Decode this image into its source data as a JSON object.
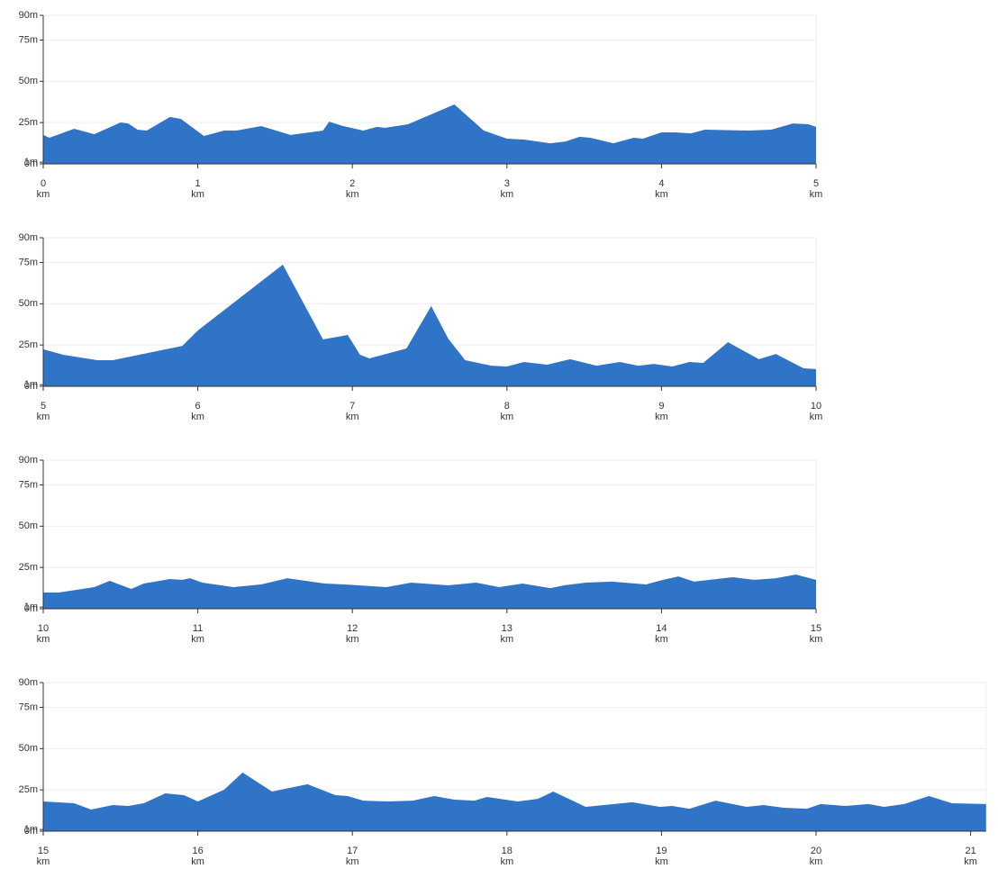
{
  "chart_data": [
    {
      "type": "area",
      "color": "#2f74c7",
      "grid": true,
      "x_unit": "km",
      "xlim": [
        0,
        5
      ],
      "xticks": [
        0,
        1,
        2,
        3,
        4,
        5
      ],
      "ylim": [
        0,
        90
      ],
      "yticks": [
        {
          "value": 0,
          "label": "0m"
        },
        {
          "value": 1,
          "label": "1m"
        },
        {
          "value": 25,
          "label": "25m"
        },
        {
          "value": 50,
          "label": "50m"
        },
        {
          "value": 75,
          "label": "75m"
        },
        {
          "value": 90,
          "label": "90m"
        }
      ],
      "x": [
        0,
        0.04,
        0.2,
        0.33,
        0.5,
        0.55,
        0.61,
        0.67,
        0.82,
        0.89,
        1.04,
        1.17,
        1.25,
        1.41,
        1.6,
        1.81,
        1.85,
        1.94,
        2.07,
        2.16,
        2.21,
        2.36,
        2.66,
        2.85,
        3.0,
        3.11,
        3.28,
        3.38,
        3.47,
        3.54,
        3.69,
        3.82,
        3.88,
        4.0,
        4.09,
        4.19,
        4.28,
        4.56,
        4.71,
        4.85,
        4.95,
        5.0
      ],
      "values": [
        17.5,
        15.8,
        21.3,
        18,
        25.1,
        24.5,
        20.7,
        20.2,
        28.4,
        27.3,
        16.9,
        20.2,
        20.2,
        22.9,
        17.5,
        20.2,
        25.6,
        22.9,
        20.2,
        22.4,
        21.8,
        24,
        36,
        20.2,
        15.3,
        14.7,
        12.5,
        13.6,
        16.4,
        15.8,
        12.5,
        15.8,
        15.3,
        19.1,
        19.1,
        18.5,
        20.7,
        20.2,
        20.7,
        24.5,
        24,
        22.4
      ]
    },
    {
      "type": "area",
      "color": "#2f74c7",
      "grid": true,
      "x_unit": "km",
      "xlim": [
        5,
        10
      ],
      "xticks": [
        5,
        6,
        7,
        8,
        9,
        10
      ],
      "ylim": [
        0,
        90
      ],
      "yticks": [
        {
          "value": 0,
          "label": "0m"
        },
        {
          "value": 1,
          "label": "1m"
        },
        {
          "value": 25,
          "label": "25m"
        },
        {
          "value": 50,
          "label": "50m"
        },
        {
          "value": 75,
          "label": "75m"
        },
        {
          "value": 90,
          "label": "90m"
        }
      ],
      "x": [
        5,
        5.13,
        5.35,
        5.45,
        5.9,
        6.0,
        6.55,
        6.81,
        6.97,
        7.05,
        7.11,
        7.35,
        7.51,
        7.62,
        7.73,
        7.9,
        8.0,
        8.11,
        8.26,
        8.41,
        8.58,
        8.73,
        8.85,
        8.95,
        9.07,
        9.18,
        9.27,
        9.43,
        9.63,
        9.74,
        9.92,
        10.0
      ],
      "values": [
        22.4,
        19.1,
        15.8,
        15.8,
        24.5,
        33.8,
        73.7,
        28.4,
        31.1,
        19.1,
        16.9,
        22.9,
        48.6,
        28.9,
        15.8,
        12.5,
        12,
        14.7,
        13.1,
        16.4,
        12.5,
        14.7,
        12.5,
        13.6,
        12,
        14.7,
        14.2,
        26.7,
        16.4,
        19.6,
        10.9,
        10.4
      ]
    },
    {
      "type": "area",
      "color": "#2f74c7",
      "grid": true,
      "x_unit": "km",
      "xlim": [
        10,
        15
      ],
      "xticks": [
        10,
        11,
        12,
        13,
        14,
        15
      ],
      "ylim": [
        0,
        90
      ],
      "yticks": [
        {
          "value": 0,
          "label": "0m"
        },
        {
          "value": 1,
          "label": "1m"
        },
        {
          "value": 25,
          "label": "25m"
        },
        {
          "value": 50,
          "label": "50m"
        },
        {
          "value": 75,
          "label": "75m"
        },
        {
          "value": 90,
          "label": "90m"
        }
      ],
      "x": [
        10,
        10.1,
        10.33,
        10.43,
        10.57,
        10.65,
        10.82,
        10.9,
        10.95,
        11.03,
        11.23,
        11.41,
        11.58,
        11.82,
        11.95,
        12.22,
        12.38,
        12.62,
        12.8,
        12.95,
        13.1,
        13.28,
        13.37,
        13.51,
        13.68,
        13.9,
        14.01,
        14.11,
        14.21,
        14.46,
        14.6,
        14.74,
        14.87,
        15.0
      ],
      "values": [
        9.8,
        9.8,
        13.1,
        16.9,
        12,
        15.3,
        18,
        17.5,
        18.5,
        15.8,
        13.1,
        14.7,
        18.5,
        15.3,
        14.7,
        13.1,
        15.8,
        14.2,
        15.8,
        13.1,
        15.3,
        12.5,
        14.2,
        15.8,
        16.4,
        14.7,
        17.5,
        19.6,
        16.4,
        19.1,
        17.5,
        18.5,
        20.7,
        17.5
      ]
    },
    {
      "type": "area",
      "color": "#2f74c7",
      "grid": true,
      "x_unit": "km",
      "xlim": [
        15,
        21.1
      ],
      "xticks": [
        15,
        16,
        17,
        18,
        19,
        20,
        21
      ],
      "ylim": [
        0,
        90
      ],
      "yticks": [
        {
          "value": 0,
          "label": "0m"
        },
        {
          "value": 1,
          "label": "1m"
        },
        {
          "value": 25,
          "label": "25m"
        },
        {
          "value": 50,
          "label": "50m"
        },
        {
          "value": 75,
          "label": "75m"
        },
        {
          "value": 90,
          "label": "90m"
        }
      ],
      "x": [
        15,
        15.2,
        15.31,
        15.45,
        15.55,
        15.65,
        15.79,
        15.91,
        16.0,
        16.17,
        16.29,
        16.48,
        16.71,
        16.89,
        16.97,
        17.07,
        17.23,
        17.39,
        17.53,
        17.66,
        17.79,
        17.87,
        18.07,
        18.2,
        18.3,
        18.51,
        18.81,
        18.99,
        19.07,
        19.18,
        19.35,
        19.55,
        19.66,
        19.79,
        19.94,
        20.03,
        20.19,
        20.34,
        20.44,
        20.57,
        20.73,
        20.88,
        21.1
      ],
      "values": [
        18,
        16.9,
        13.1,
        15.8,
        15.3,
        16.9,
        22.9,
        21.8,
        18,
        25.1,
        35.5,
        24,
        28.4,
        21.8,
        21.3,
        18.5,
        18,
        18.5,
        21.3,
        19.1,
        18.5,
        20.7,
        18,
        19.6,
        24,
        14.7,
        17.5,
        14.7,
        15.3,
        13.6,
        18.5,
        14.7,
        15.8,
        14.2,
        13.6,
        16.4,
        15.3,
        16.4,
        14.7,
        16.4,
        21.3,
        16.9,
        16.4
      ]
    }
  ]
}
